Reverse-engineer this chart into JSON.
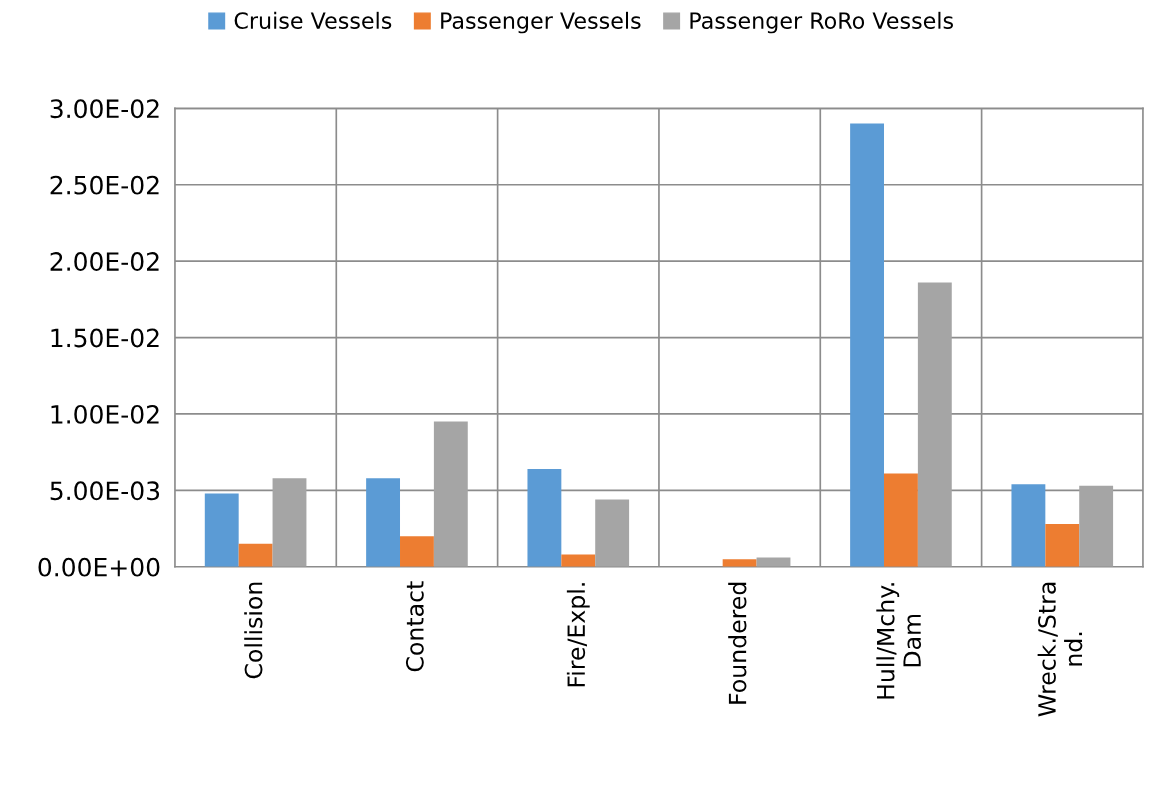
{
  "chart_data": {
    "type": "bar",
    "categories": [
      "Collision",
      "Contact",
      "Fire/Expl.",
      "Foundered",
      "Hull/Mchy.\nDam",
      "Wreck./Stra\nnd."
    ],
    "series": [
      {
        "name": "Cruise Vessels",
        "color": "#5b9bd5",
        "values": [
          0.0048,
          0.0058,
          0.0064,
          0,
          0.029,
          0.0054
        ]
      },
      {
        "name": "Passenger Vessels",
        "color": "#ed7d31",
        "values": [
          0.0015,
          0.002,
          0.0008,
          0.0005,
          0.0061,
          0.0028
        ]
      },
      {
        "name": "Passenger RoRo Vessels",
        "color": "#a5a5a5",
        "values": [
          0.0058,
          0.0095,
          0.0044,
          0.0006,
          0.0186,
          0.0053
        ]
      }
    ],
    "ylim": [
      0,
      0.03
    ],
    "yticks": [
      {
        "value": 0,
        "label": "0.00E+00"
      },
      {
        "value": 0.005,
        "label": "5.00E-03"
      },
      {
        "value": 0.01,
        "label": "1.00E-02"
      },
      {
        "value": 0.015,
        "label": "1.50E-02"
      },
      {
        "value": 0.02,
        "label": "2.00E-02"
      },
      {
        "value": 0.025,
        "label": "2.50E-02"
      },
      {
        "value": 0.03,
        "label": "3.00E-02"
      }
    ],
    "grid": true,
    "legend": "top"
  }
}
